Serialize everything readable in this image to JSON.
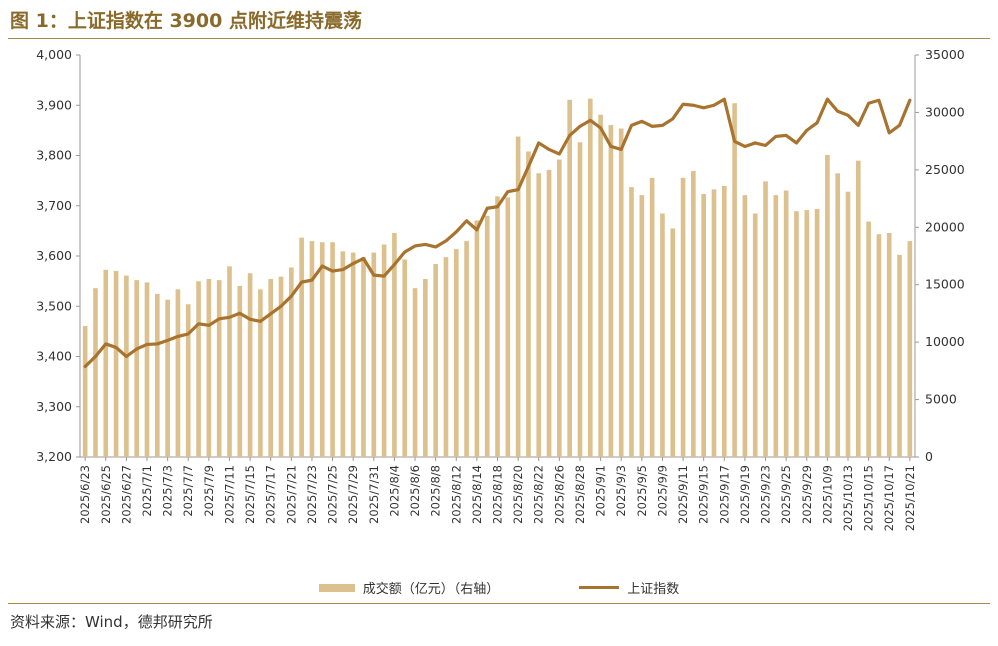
{
  "title": "图 1：上证指数在 3900 点附近维持震荡",
  "source": "资料来源：Wind，德邦研究所",
  "colors": {
    "bar": "#dcc18f",
    "line": "#a8732e",
    "rule": "#a8874a",
    "title": "#8a6a2a"
  },
  "chart_data": {
    "type": "bar+line",
    "left_axis": {
      "range": [
        3200,
        4000
      ],
      "ticks": [
        "3,200",
        "3,300",
        "3,400",
        "3,500",
        "3,600",
        "3,700",
        "3,800",
        "3,900",
        "4,000"
      ]
    },
    "right_axis": {
      "range": [
        0,
        35000
      ],
      "ticks": [
        "0",
        "5000",
        "10000",
        "15000",
        "20000",
        "25000",
        "30000",
        "35000"
      ]
    },
    "x_tick_labels": [
      "2025/6/23",
      "2025/6/25",
      "2025/6/27",
      "2025/7/1",
      "2025/7/3",
      "2025/7/7",
      "2025/7/9",
      "2025/7/11",
      "2025/7/15",
      "2025/7/17",
      "2025/7/21",
      "2025/7/23",
      "2025/7/25",
      "2025/7/29",
      "2025/7/31",
      "2025/8/4",
      "2025/8/6",
      "2025/8/8",
      "2025/8/12",
      "2025/8/14",
      "2025/8/18",
      "2025/8/20",
      "2025/8/22",
      "2025/8/26",
      "2025/8/28",
      "2025/9/1",
      "2025/9/3",
      "2025/9/5",
      "2025/9/9",
      "2025/9/11",
      "2025/9/15",
      "2025/9/17",
      "2025/9/19",
      "2025/9/23",
      "2025/9/25",
      "2025/9/29",
      "2025/10/9",
      "2025/10/13",
      "2025/10/15",
      "2025/10/17",
      "2025/10/21"
    ],
    "series": [
      {
        "name": "成交额（亿元）（右轴）",
        "type": "bar",
        "axis": "right",
        "values": [
          11400,
          14700,
          16300,
          16200,
          15800,
          15400,
          15200,
          14200,
          13700,
          14600,
          13300,
          15300,
          15500,
          15400,
          16600,
          14900,
          16000,
          14600,
          15500,
          15700,
          16500,
          19100,
          18800,
          18700,
          18700,
          17900,
          17800,
          17400,
          17800,
          18500,
          19500,
          17200,
          14700,
          15500,
          16800,
          17400,
          18100,
          18800,
          20600,
          21000,
          22700,
          22600,
          27900,
          26600,
          24700,
          25000,
          25900,
          31100,
          27400,
          31200,
          29800,
          28900,
          28600,
          23500,
          22800,
          24300,
          21200,
          19900,
          24300,
          24900,
          22900,
          23300,
          23600,
          30800,
          22800,
          21200,
          24000,
          22800,
          23200,
          21400,
          21500,
          21600,
          26300,
          24700,
          23100,
          25800,
          20500,
          19400,
          19500,
          17600,
          18800
        ]
      },
      {
        "name": "上证指数",
        "type": "line",
        "axis": "left",
        "values": [
          3380,
          3400,
          3425,
          3418,
          3400,
          3415,
          3424,
          3425,
          3432,
          3440,
          3445,
          3465,
          3462,
          3475,
          3478,
          3486,
          3474,
          3470,
          3485,
          3500,
          3520,
          3548,
          3552,
          3580,
          3570,
          3573,
          3585,
          3595,
          3562,
          3560,
          3583,
          3608,
          3620,
          3623,
          3618,
          3630,
          3648,
          3670,
          3652,
          3695,
          3698,
          3728,
          3732,
          3778,
          3825,
          3812,
          3803,
          3840,
          3858,
          3870,
          3855,
          3818,
          3812,
          3860,
          3868,
          3858,
          3860,
          3873,
          3902,
          3900,
          3895,
          3900,
          3912,
          3828,
          3818,
          3825,
          3820,
          3838,
          3840,
          3825,
          3850,
          3865,
          3912,
          3888,
          3880,
          3860,
          3904,
          3910,
          3845,
          3860,
          3910
        ]
      }
    ],
    "legend": [
      "成交额（亿元）（右轴）",
      "上证指数"
    ],
    "legend_position": "bottom"
  }
}
